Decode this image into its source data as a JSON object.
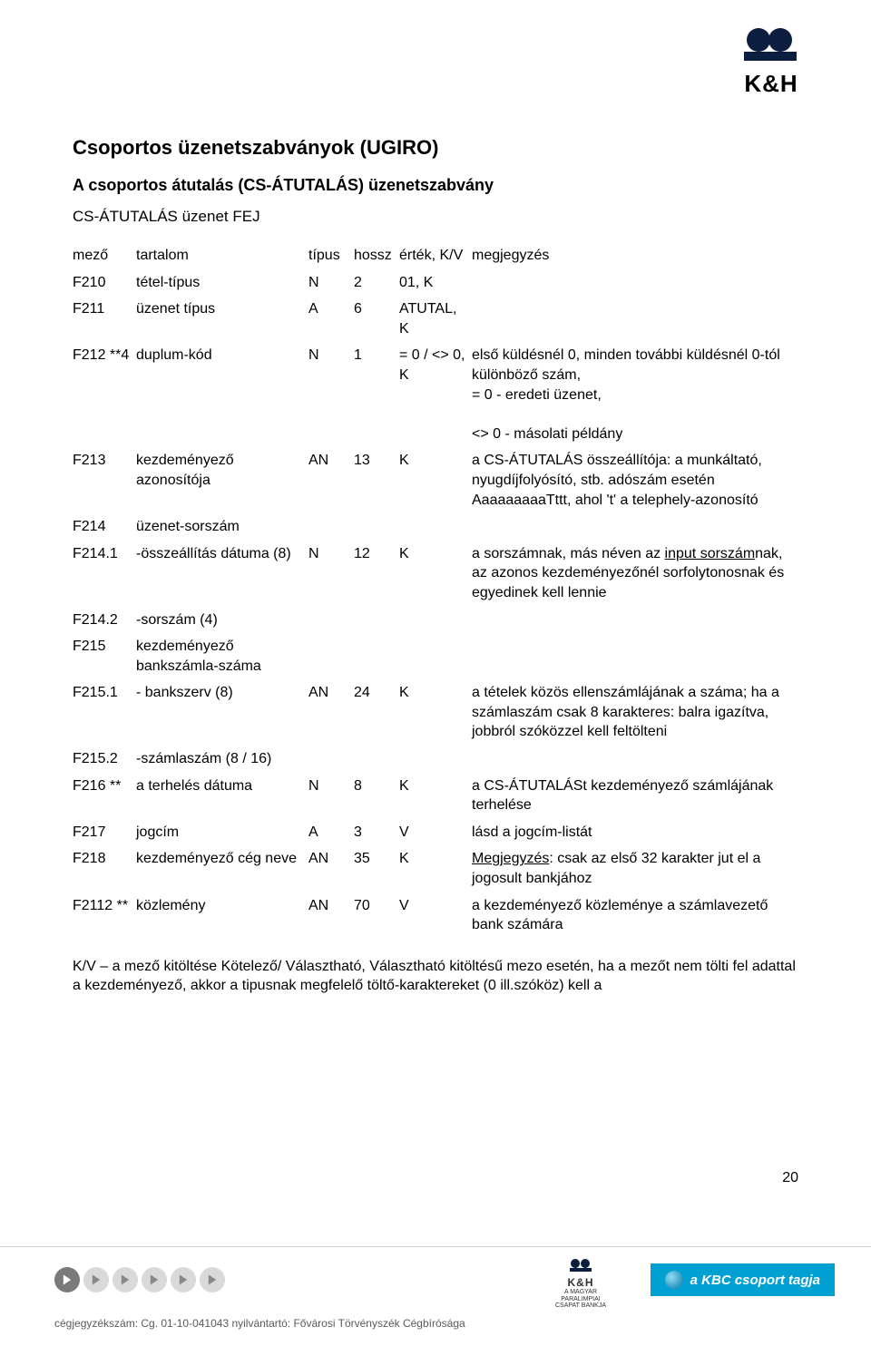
{
  "logo": {
    "text": "K&H"
  },
  "title": "Csoportos üzenetszabványok (UGIRO)",
  "subtitle": "A csoportos átutalás (CS-ÁTUTALÁS) üzenetszabvány",
  "section_head": "CS-ÁTUTALÁS üzenet FEJ",
  "columns": {
    "mezo": "mező",
    "tartalom": "tartalom",
    "tipus": "típus",
    "hossz": "hossz",
    "ertek": "érték, K/V",
    "megj": "megjegyzés"
  },
  "rows": [
    {
      "mezo": "F210",
      "tartalom": "tétel-típus",
      "tipus": "N",
      "hossz": "2",
      "ertek": "01, K",
      "megj": ""
    },
    {
      "mezo": "F211",
      "tartalom": "üzenet típus",
      "tipus": "A",
      "hossz": "6",
      "ertek": "ATUTAL, K",
      "megj": ""
    },
    {
      "mezo": "F212 **4",
      "tartalom": "duplum-kód",
      "tipus": "N",
      "hossz": "1",
      "ertek": "= 0 / <> 0, K",
      "megj": "első küldésnél 0, minden további küldésnél 0-tól különböző szám,\n= 0 - eredeti üzenet,\n\n<> 0 - másolati példány"
    },
    {
      "mezo": "F213",
      "tartalom": "kezdeményező azonosítója",
      "tipus": "AN",
      "hossz": "13",
      "ertek": "K",
      "megj": "a CS-ÁTUTALÁS összeállítója: a munkáltató, nyugdíjfolyósító, stb. adószám esetén AaaaaaaaaTttt, ahol 't' a telephely-azonosító"
    },
    {
      "mezo": "F214",
      "tartalom": "üzenet-sorszám",
      "tipus": "",
      "hossz": "",
      "ertek": "",
      "megj": ""
    },
    {
      "mezo": "F214.1",
      "tartalom": "-összeállítás dátuma (8)",
      "tipus": "N",
      "hossz": "12",
      "ertek": "K",
      "megj_html": "a sorszámnak, más néven az <span class=\"u\">input sorszám</span>nak, az azonos kezdeményezőnél sorfolytonosnak és egyedinek kell lennie"
    },
    {
      "mezo": "F214.2",
      "tartalom": "-sorszám (4)",
      "tipus": "",
      "hossz": "",
      "ertek": "",
      "megj": ""
    },
    {
      "mezo": "F215",
      "tartalom": "kezdeményező bankszámla-száma",
      "tipus": "",
      "hossz": "",
      "ertek": "",
      "megj": ""
    },
    {
      "mezo": "F215.1",
      "tartalom": "- bankszerv (8)",
      "tipus": "AN",
      "hossz": "24",
      "ertek": "K",
      "megj": "a tételek közös ellenszámlájának a száma; ha a számlaszám csak 8 karakteres: balra igazítva, jobbról szóközzel kell feltölteni"
    },
    {
      "mezo": "F215.2",
      "tartalom": "-számlaszám (8 / 16)",
      "tipus": "",
      "hossz": "",
      "ertek": "",
      "megj": ""
    },
    {
      "mezo": "F216 **",
      "tartalom": "a terhelés dátuma",
      "tipus": "N",
      "hossz": "8",
      "ertek": "K",
      "megj": "a CS-ÁTUTALÁSt kezdeményező számlájának terhelése"
    },
    {
      "mezo": "F217",
      "tartalom": "jogcím",
      "tipus": "A",
      "hossz": "3",
      "ertek": "V",
      "megj": "lásd a jogcím-listát"
    },
    {
      "mezo": "F218",
      "tartalom": "kezdeményező cég neve",
      "tipus": "AN",
      "hossz": "35",
      "ertek": "K",
      "megj_html": "<span class=\"u\">Megjegyzés</span>: csak az első 32 karakter jut el a jogosult bankjához"
    },
    {
      "mezo": "F2112 **",
      "tartalom": "közlemény",
      "tipus": "AN",
      "hossz": "70",
      "ertek": "V",
      "megj": "a kezdeményező közleménye a számlavezető bank számára"
    }
  ],
  "kv_note": "K/V – a mező kitöltése Kötelező/ Választható, Választható kitöltésű mezo esetén, ha a mezőt nem tölti fel adattal a kezdeményező, akkor a tipusnak megfelelő töltő-karaktereket (0 ill.szóköz) kell a",
  "page_number": "20",
  "footer": {
    "legal": "cégjegyzékszám: Cg. 01-10-041043  nyilvántartó: Fővárosi Törvényszék Cégbírósága",
    "paralimpia": {
      "kh": "K&H",
      "l1": "A MAGYAR",
      "l2": "PARALIMPIAI",
      "l3": "CSAPAT BANKJA"
    },
    "kbc": "a KBC csoport tagja"
  },
  "colors": {
    "text": "#000000",
    "kbc_bg": "#00a0d2",
    "arrow_dark": "#7a7a7a",
    "arrow_light": "#d9d9d9",
    "footer_rule": "#cfcfcf"
  }
}
